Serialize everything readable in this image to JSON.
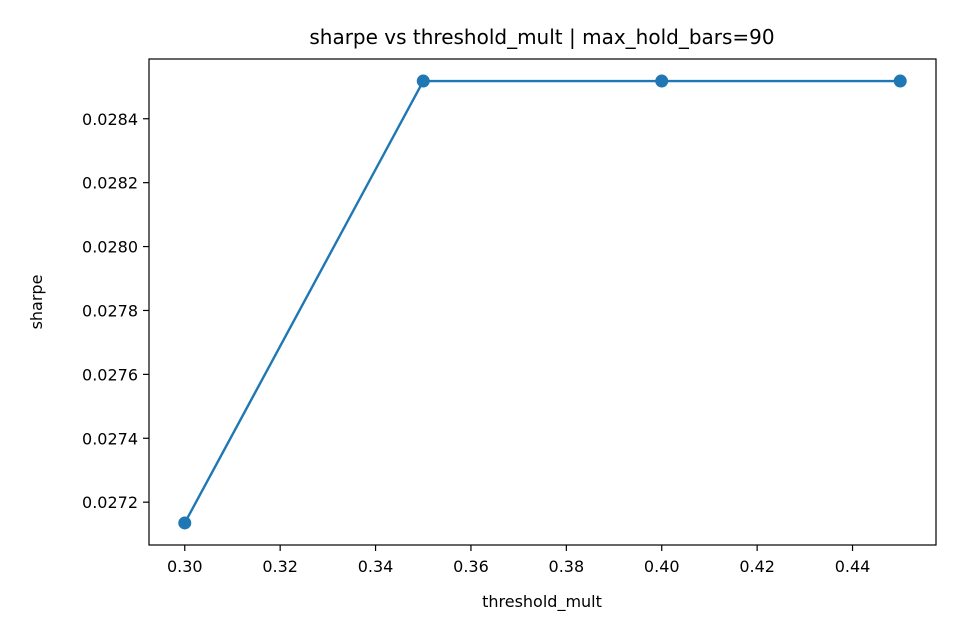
{
  "chart_data": {
    "type": "line",
    "title": "sharpe vs threshold_mult | max_hold_bars=90",
    "xlabel": "threshold_mult",
    "ylabel": "sharpe",
    "x": [
      0.3,
      0.35,
      0.4,
      0.45
    ],
    "series": [
      {
        "values": [
          0.027135,
          0.028518,
          0.028518,
          0.028518
        ],
        "color": "#1f77b4",
        "marker": "circle"
      }
    ],
    "xlim": [
      0.2925,
      0.4575
    ],
    "ylim": [
      0.027066,
      0.028587
    ],
    "xticks": [
      0.3,
      0.32,
      0.34,
      0.36,
      0.38,
      0.4,
      0.42,
      0.44
    ],
    "xtick_labels": [
      "0.30",
      "0.32",
      "0.34",
      "0.36",
      "0.38",
      "0.40",
      "0.42",
      "0.44"
    ],
    "yticks": [
      0.0272,
      0.0274,
      0.0276,
      0.0278,
      0.028,
      0.0282,
      0.0284
    ],
    "ytick_labels": [
      "0.0272",
      "0.0274",
      "0.0276",
      "0.0278",
      "0.0280",
      "0.0282",
      "0.0284"
    ],
    "grid": false,
    "legend": "none"
  }
}
